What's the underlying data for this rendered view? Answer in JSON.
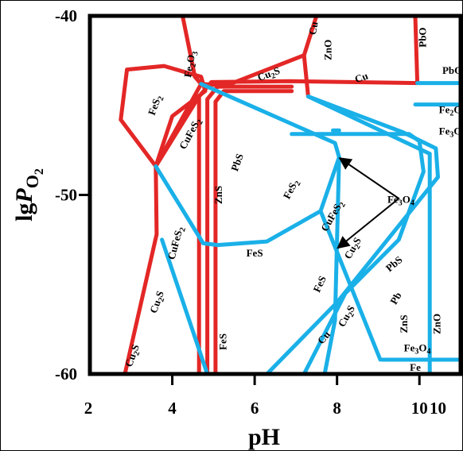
{
  "chart_data": {
    "type": "line",
    "title": "",
    "xlabel": "pH",
    "ylabel": "lgPO2",
    "xlim": [
      2,
      11
    ],
    "ylim": [
      -60,
      -40
    ],
    "x_tick_labels": [
      "2",
      "4",
      "6",
      "8",
      "10",
      "10"
    ],
    "y_tick_labels": [
      "-40",
      "-50",
      "-60"
    ],
    "grid": false,
    "colors": {
      "red": "#e32726",
      "blue": "#1ab0e8",
      "frame": "#000000"
    },
    "series": [
      {
        "color": "red",
        "lines": [
          [
            [
              4.65,
              -60
            ],
            [
              4.65,
              -44.5
            ],
            [
              4.95,
              -43.7
            ],
            [
              6.85,
              -43.65
            ],
            [
              9.95,
              -43.75
            ]
          ],
          [
            [
              4.85,
              -60
            ],
            [
              4.85,
              -44.65
            ],
            [
              5.1,
              -43.95
            ],
            [
              6.9,
              -43.95
            ]
          ],
          [
            [
              5.05,
              -60
            ],
            [
              5.05,
              -44.8
            ],
            [
              5.25,
              -44.2
            ],
            [
              6.9,
              -44.2
            ]
          ],
          [
            [
              4.65,
              -44.5
            ],
            [
              3.6,
              -48.4
            ],
            [
              3.62,
              -52.2
            ],
            [
              2.85,
              -60
            ]
          ],
          [
            [
              3.6,
              -48.4
            ],
            [
              2.75,
              -45.8
            ],
            [
              2.9,
              -43.0
            ],
            [
              3.8,
              -42.8
            ],
            [
              4.7,
              -43.4
            ],
            [
              4.8,
              -44.2
            ],
            [
              4.0,
              -45.6
            ],
            [
              3.6,
              -48.4
            ]
          ],
          [
            [
              3.6,
              -48.4
            ],
            [
              4.7,
              -43.8
            ]
          ],
          [
            [
              4.7,
              -43.8
            ],
            [
              4.55,
              -43.4
            ],
            [
              4.25,
              -40
            ]
          ],
          [
            [
              4.7,
              -43.8
            ],
            [
              5.3,
              -43.9
            ],
            [
              7.2,
              -42.2
            ],
            [
              7.5,
              -40
            ]
          ],
          [
            [
              7.2,
              -42.2
            ],
            [
              7.3,
              -44.5
            ]
          ],
          [
            [
              9.9,
              -40
            ],
            [
              9.95,
              -43.75
            ]
          ]
        ]
      },
      {
        "color": "blue",
        "lines": [
          [
            [
              4.7,
              -43.8
            ],
            [
              7.95,
              -47.1
            ],
            [
              8.05,
              -47.9
            ],
            [
              7.6,
              -50.9
            ],
            [
              6.3,
              -52.6
            ],
            [
              5.1,
              -52.8
            ],
            [
              4.75,
              -52.7
            ],
            [
              3.6,
              -48.4
            ]
          ],
          [
            [
              3.75,
              -52.5
            ],
            [
              4.85,
              -60
            ]
          ],
          [
            [
              7.6,
              -50.9
            ],
            [
              9.05,
              -59.2
            ]
          ],
          [
            [
              8.05,
              -47.9
            ],
            [
              7.95,
              -57.0
            ],
            [
              7.7,
              -60
            ]
          ],
          [
            [
              7.3,
              -44.5
            ],
            [
              10.25,
              -47.7
            ],
            [
              10.25,
              -60
            ]
          ],
          [
            [
              7.3,
              -44.5
            ],
            [
              9.6,
              -46.5
            ]
          ],
          [
            [
              9.6,
              -46.5
            ],
            [
              10.4,
              -47.4
            ],
            [
              10.45,
              -49.0
            ],
            [
              8.0,
              -56.0
            ],
            [
              6.3,
              -60
            ]
          ],
          [
            [
              9.95,
              -43.75
            ],
            [
              10.9,
              -43.75
            ],
            [
              11,
              -43.75
            ]
          ],
          [
            [
              9.9,
              -44.95
            ],
            [
              11,
              -44.95
            ]
          ],
          [
            [
              7.35,
              -46.6
            ],
            [
              9.75,
              -46.6
            ],
            [
              10.0,
              -47.0
            ],
            [
              10.1,
              -48.7
            ],
            [
              9.5,
              -52.5
            ],
            [
              8.2,
              -55.5
            ],
            [
              7.2,
              -60
            ]
          ],
          [
            [
              6.9,
              -46.6
            ],
            [
              7.35,
              -46.6
            ]
          ],
          [
            [
              9.1,
              -59.2
            ],
            [
              11,
              -59.2
            ]
          ],
          [
            [
              7.9,
              -46.4
            ],
            [
              8.05,
              -46.4
            ]
          ]
        ]
      },
      {
        "color": "black",
        "lines": [
          [
            [
              9.5,
              -50.2
            ],
            [
              8.1,
              -48.0
            ]
          ],
          [
            [
              9.5,
              -50.2
            ],
            [
              8.05,
              -52.9
            ]
          ]
        ]
      }
    ],
    "annotations": [
      {
        "text": "Fe2O3",
        "x": 4.45,
        "y": -42.7
      },
      {
        "text": "Cu",
        "x": 7.45,
        "y": -40.7
      },
      {
        "text": "ZnO",
        "x": 7.8,
        "y": -41.9
      },
      {
        "text": "PbO",
        "x": 10.1,
        "y": -41.2
      },
      {
        "text": "PbO",
        "x": 10.8,
        "y": -43.1
      },
      {
        "text": "FeS2",
        "x": 3.6,
        "y": -45.0
      },
      {
        "text": "Cu2S",
        "x": 6.35,
        "y": -43.3
      },
      {
        "text": "Cu",
        "x": 8.6,
        "y": -43.5
      },
      {
        "text": "CuFeS2",
        "x": 4.45,
        "y": -46.6
      },
      {
        "text": "PbS",
        "x": 5.6,
        "y": -48.2
      },
      {
        "text": "Fe2O3",
        "x": 10.8,
        "y": -45.3
      },
      {
        "text": "Fe3O4",
        "x": 10.8,
        "y": -46.5
      },
      {
        "text": "ZnS",
        "x": 5.15,
        "y": -50.0
      },
      {
        "text": "FeS2",
        "x": 6.9,
        "y": -49.7
      },
      {
        "text": "Fe3O4",
        "x": 9.55,
        "y": -50.3
      },
      {
        "text": "CuFeS2",
        "x": 7.9,
        "y": -51.2
      },
      {
        "text": "CuFeS2",
        "x": 4.1,
        "y": -52.7
      },
      {
        "text": "Cu2S",
        "x": 8.4,
        "y": -53.0
      },
      {
        "text": "FeS",
        "x": 6.0,
        "y": -53.3
      },
      {
        "text": "PbS",
        "x": 9.4,
        "y": -53.9
      },
      {
        "text": "FeS",
        "x": 7.6,
        "y": -55.0
      },
      {
        "text": "Cu2S",
        "x": 3.65,
        "y": -56.0
      },
      {
        "text": "Cu2S",
        "x": 8.25,
        "y": -56.8
      },
      {
        "text": "Pb",
        "x": 9.45,
        "y": -55.8
      },
      {
        "text": "Cu",
        "x": 7.7,
        "y": -58.0
      },
      {
        "text": "ZnS",
        "x": 9.65,
        "y": -57.2
      },
      {
        "text": "ZnO",
        "x": 10.45,
        "y": -57.2
      },
      {
        "text": "FeS",
        "x": 5.25,
        "y": -58.2
      },
      {
        "text": "Cu2S",
        "x": 3.05,
        "y": -59.0
      },
      {
        "text": "Fe3O4",
        "x": 9.95,
        "y": -58.6
      },
      {
        "text": "Fe",
        "x": 9.9,
        "y": -59.7
      }
    ]
  }
}
